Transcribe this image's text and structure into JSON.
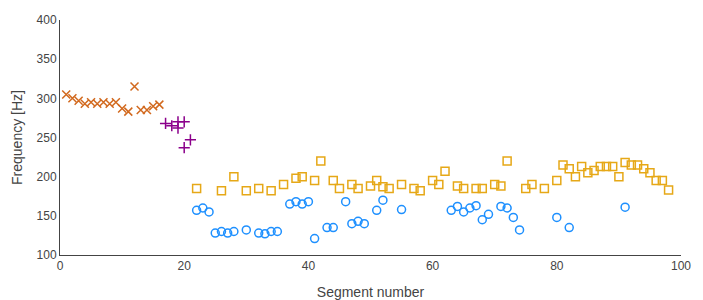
{
  "chart_data": {
    "type": "scatter",
    "xlabel": "Segment number",
    "ylabel": "Frequency [Hz]",
    "xlim": [
      0,
      100
    ],
    "ylim": [
      100,
      400
    ],
    "xticks": [
      0,
      20,
      40,
      60,
      80,
      100
    ],
    "yticks": [
      100,
      150,
      200,
      250,
      300,
      350,
      400
    ],
    "grid": false,
    "series": [
      {
        "color": "#d2691e",
        "marker": "x",
        "x": [
          1,
          2,
          3,
          4,
          5,
          6,
          7,
          8,
          9,
          10,
          11,
          12,
          13,
          14,
          15,
          16
        ],
        "values": [
          305,
          300,
          297,
          293,
          295,
          293,
          295,
          293,
          295,
          287,
          283,
          315,
          285,
          285,
          290,
          292
        ]
      },
      {
        "color": "#8b008b",
        "marker": "plus",
        "x": [
          17,
          18,
          19,
          19,
          20,
          20,
          21
        ],
        "values": [
          268,
          265,
          270,
          262,
          270,
          237,
          247
        ]
      },
      {
        "color": "#1e90ff",
        "marker": "circle",
        "x": [
          22,
          23,
          24,
          25,
          26,
          27,
          28,
          30,
          32,
          33,
          34,
          35,
          37,
          38,
          39,
          40,
          41,
          43,
          44,
          46,
          47,
          48,
          49,
          51,
          52,
          55,
          63,
          64,
          65,
          66,
          67,
          68,
          69,
          71,
          72,
          73,
          74,
          80,
          82,
          91
        ],
        "values": [
          157,
          160,
          155,
          128,
          130,
          128,
          130,
          132,
          128,
          127,
          130,
          130,
          165,
          168,
          165,
          168,
          121,
          135,
          135,
          168,
          140,
          143,
          140,
          157,
          170,
          158,
          157,
          162,
          155,
          160,
          163,
          145,
          152,
          162,
          160,
          148,
          132,
          148,
          135,
          161
        ]
      },
      {
        "color": "#e6a817",
        "marker": "square",
        "x": [
          22,
          26,
          28,
          30,
          32,
          34,
          36,
          38,
          39,
          41,
          42,
          44,
          45,
          47,
          48,
          50,
          51,
          52,
          53,
          55,
          57,
          58,
          60,
          61,
          62,
          64,
          65,
          67,
          68,
          70,
          71,
          72,
          75,
          76,
          78,
          80,
          81,
          82,
          83,
          84,
          85,
          86,
          87,
          88,
          89,
          90,
          91,
          92,
          93,
          94,
          95,
          96,
          97,
          98
        ],
        "values": [
          185,
          182,
          200,
          182,
          185,
          182,
          190,
          198,
          200,
          195,
          220,
          195,
          185,
          190,
          185,
          188,
          195,
          187,
          185,
          190,
          185,
          182,
          195,
          190,
          207,
          188,
          185,
          185,
          185,
          190,
          188,
          220,
          185,
          190,
          185,
          195,
          215,
          210,
          200,
          213,
          205,
          208,
          213,
          213,
          213,
          200,
          218,
          215,
          215,
          210,
          205,
          195,
          195,
          183
        ]
      }
    ]
  }
}
